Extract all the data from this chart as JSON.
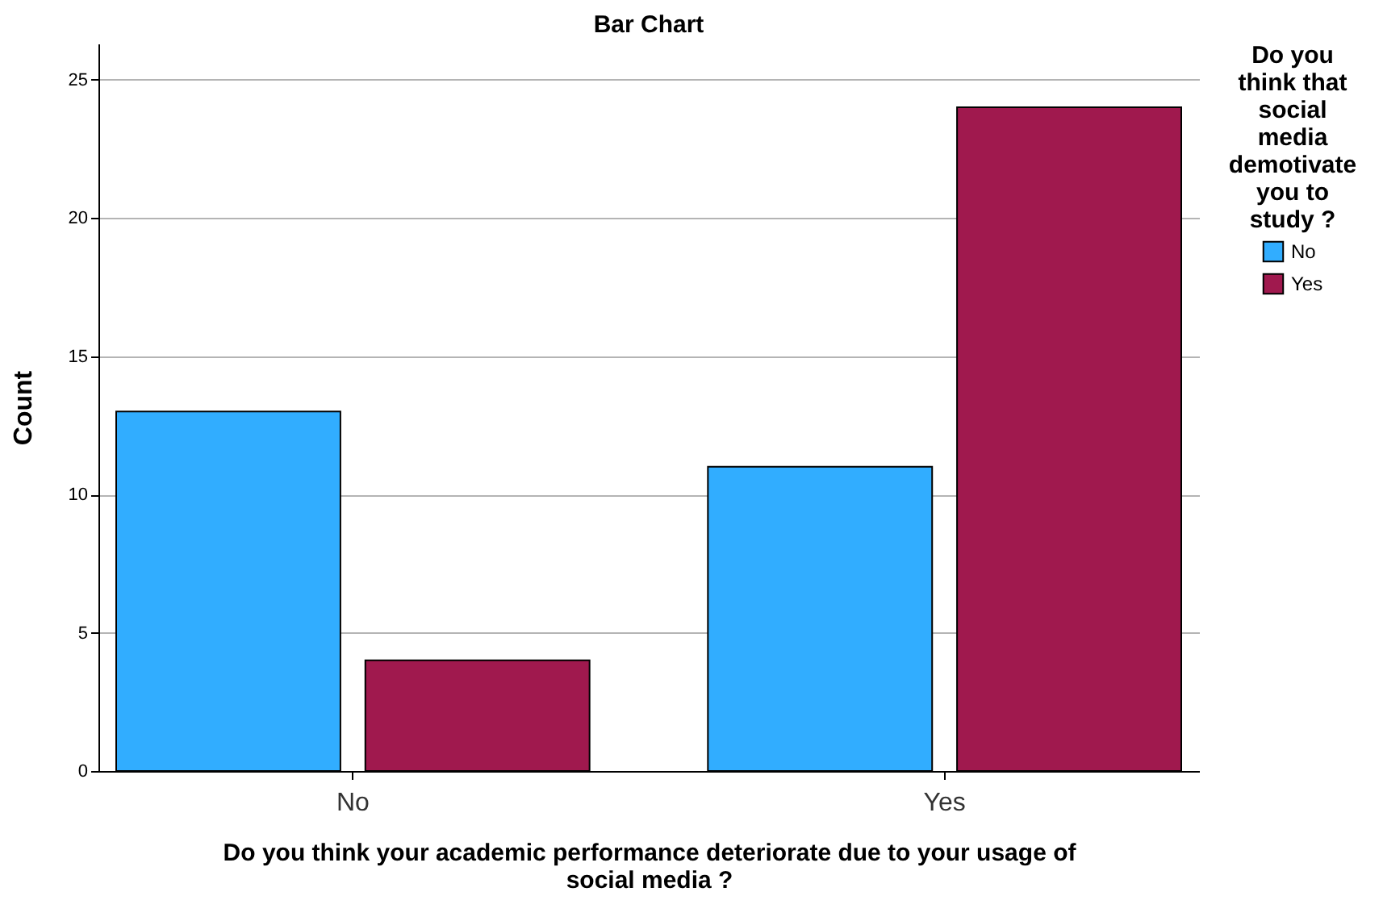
{
  "chart_data": {
    "type": "bar",
    "title": "Bar Chart",
    "xlabel": "Do you think your academic performance deteriorate due to your usage of social media ?",
    "ylabel": "Count",
    "legend_title": "Do you think that social media demotivate you to study ?",
    "categories": [
      "No",
      "Yes"
    ],
    "series": [
      {
        "name": "No",
        "color": "#31adff",
        "values": [
          13,
          11
        ]
      },
      {
        "name": "Yes",
        "color": "#a0194e",
        "values": [
          4,
          24
        ]
      }
    ],
    "ylim": [
      0,
      26.3
    ],
    "yticks": [
      0,
      5,
      10,
      15,
      20,
      25
    ],
    "grid": "y",
    "legend": "top right"
  }
}
